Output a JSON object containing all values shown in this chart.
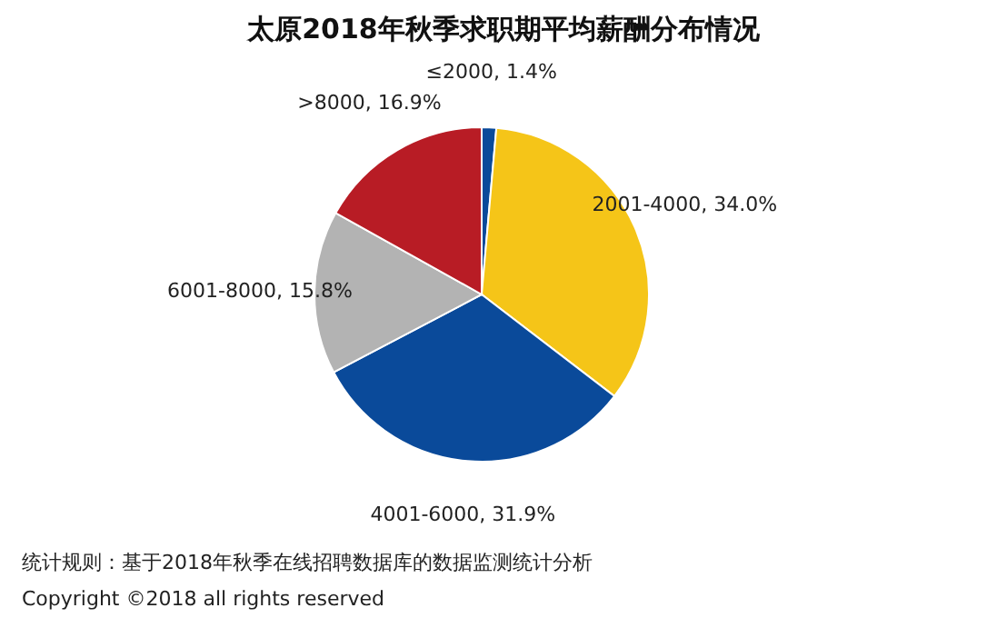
{
  "chart_data": {
    "type": "pie",
    "title": "太原2018年秋季求职期平均薪酬分布情况",
    "categories": [
      "≤2000",
      "2001-4000",
      "4001-6000",
      "6001-8000",
      ">8000"
    ],
    "values": [
      1.4,
      34.0,
      31.9,
      15.8,
      16.9
    ],
    "value_labels": [
      "1.4%",
      "34.0%",
      "31.9%",
      "15.8%",
      "16.9%"
    ],
    "colors": [
      "#0a4a9a",
      "#f5c518",
      "#0a4a9a",
      "#b3b3b3",
      "#b81c25"
    ],
    "annotations": [
      "统计规则：基于2018年秋季在线招聘数据库的数据监测统计分析",
      "Copyright ©2018 all rights reserved"
    ]
  }
}
